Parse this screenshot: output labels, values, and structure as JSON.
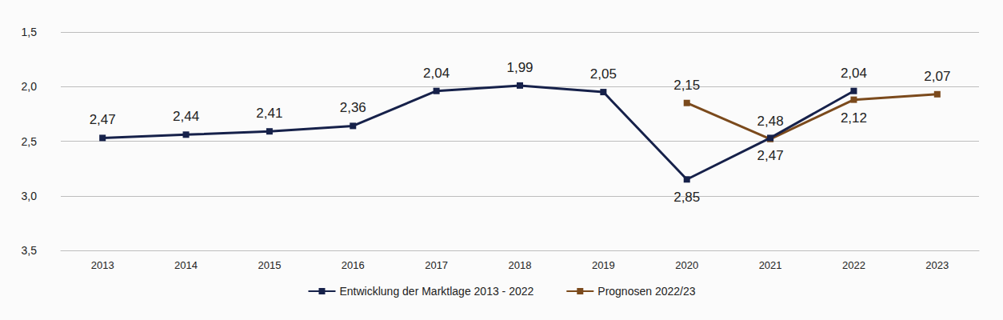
{
  "chart_data": {
    "type": "line",
    "categories": [
      "2013",
      "2014",
      "2015",
      "2016",
      "2017",
      "2018",
      "2019",
      "2020",
      "2021",
      "2022",
      "2023"
    ],
    "series": [
      {
        "name": "Entwicklung der Marktlage 2013 - 2022",
        "color": "#16214a",
        "marker": "square",
        "line_style": "solid",
        "values": [
          2.47,
          2.44,
          2.41,
          2.36,
          2.04,
          1.99,
          2.05,
          2.85,
          2.47,
          2.04,
          null
        ],
        "value_labels": [
          "2,47",
          "2,44",
          "2,41",
          "2,36",
          "2,04",
          "1,99",
          "2,05",
          "2,85",
          "2,47",
          "2,04",
          null
        ]
      },
      {
        "name": "Prognosen 2022/23",
        "color": "#7b4a1c",
        "marker": "square",
        "line_style": "solid",
        "values": [
          null,
          null,
          null,
          null,
          null,
          null,
          null,
          2.15,
          2.48,
          2.12,
          2.07
        ],
        "value_labels": [
          null,
          null,
          null,
          null,
          null,
          null,
          null,
          "2,15",
          "2,48",
          "2,12",
          "2,07"
        ]
      }
    ],
    "ylim": [
      3.5,
      1.5
    ],
    "yticks": [
      {
        "value": 1.5,
        "label": "1,5"
      },
      {
        "value": 2.0,
        "label": "2,0"
      },
      {
        "value": 2.5,
        "label": "2,5"
      },
      {
        "value": 3.0,
        "label": "3,0"
      },
      {
        "value": 3.5,
        "label": "3,5"
      }
    ],
    "grid": true,
    "legend": "bottom",
    "data_labels": true
  }
}
